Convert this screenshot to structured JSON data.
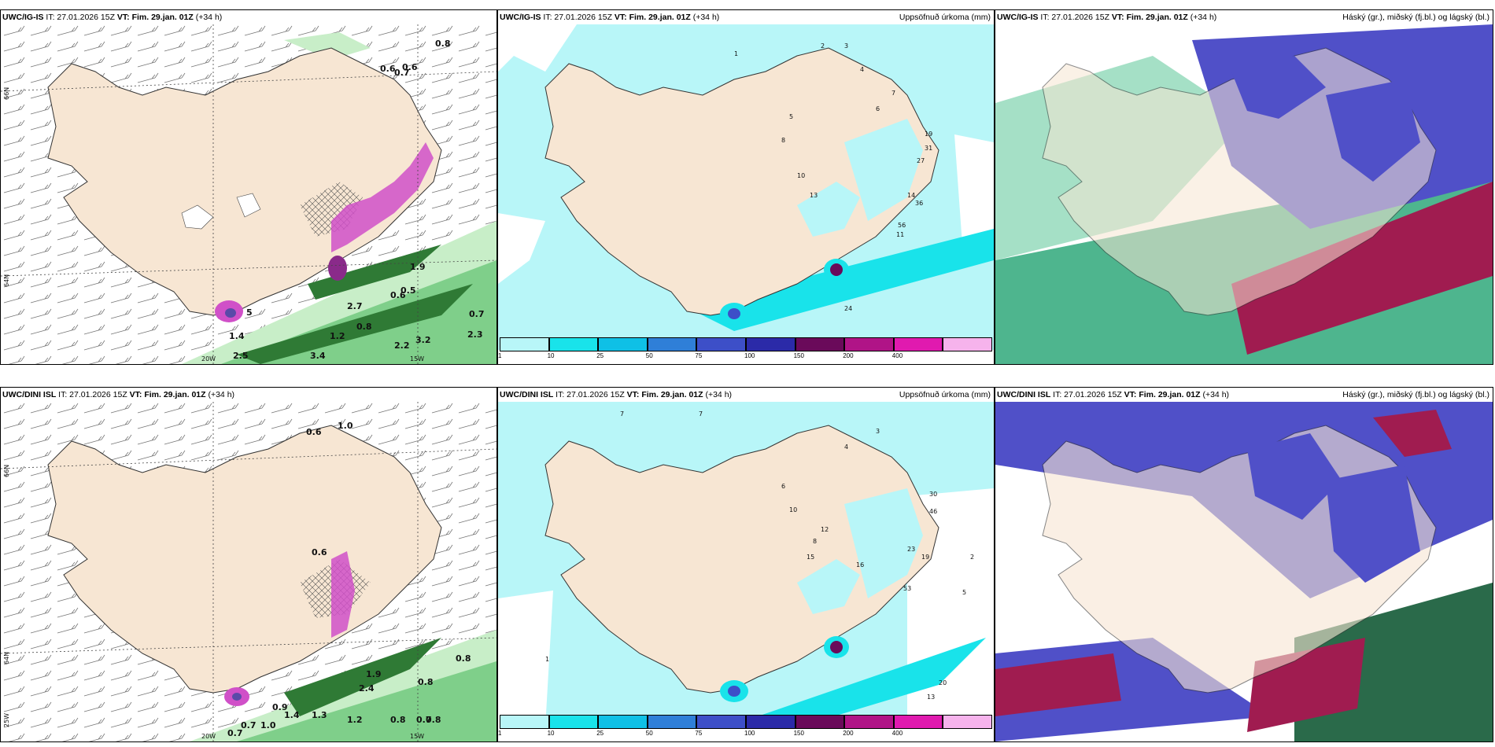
{
  "panels": [
    {
      "model": "UWC/IG-IS",
      "it": "IT: 27.01.2026 15Z",
      "vt_label": "VT:",
      "vt": "Fim. 29.jan. 01Z",
      "lead": "(+34 h)",
      "right": ""
    },
    {
      "model": "UWC/IG-IS",
      "it": "IT: 27.01.2026 15Z",
      "vt_label": "VT:",
      "vt": "Fim. 29.jan. 01Z",
      "lead": "(+34 h)",
      "right": "Uppsöfnuð úrkoma (mm)"
    },
    {
      "model": "UWC/IG-IS",
      "it": "IT: 27.01.2026 15Z",
      "vt_label": "VT:",
      "vt": "Fim. 29.jan. 01Z",
      "lead": "(+34 h)",
      "right": "Háský (gr.), miðský (fj.bl.) og lágský (bl.)"
    },
    {
      "model": "UWC/DINI ISL",
      "it": "IT: 27.01.2026 15Z",
      "vt_label": "VT:",
      "vt": "Fim. 29.jan. 01Z",
      "lead": "(+34 h)",
      "right": ""
    },
    {
      "model": "UWC/DINI ISL",
      "it": "IT: 27.01.2026 15Z",
      "vt_label": "VT:",
      "vt": "Fim. 29.jan. 01Z",
      "lead": "(+34 h)",
      "right": "Uppsöfnuð úrkoma (mm)"
    },
    {
      "model": "UWC/DINI ISL",
      "it": "IT: 27.01.2026 15Z",
      "vt_label": "VT:",
      "vt": "Fim. 29.jan. 01Z",
      "lead": "(+34 h)",
      "right": "Háský (gr.), miðský (fj.bl.) og lágský (bl.)"
    }
  ],
  "axis_labels": {
    "lat66": "66N",
    "lat64": "64N",
    "lon25": "25W",
    "lon20": "20W",
    "lon15": "15W"
  },
  "colorbar": {
    "ticks": [
      "1",
      "10",
      "25",
      "50",
      "75",
      "100",
      "150",
      "200",
      "400"
    ],
    "colors": [
      "#b8f6f8",
      "#19e3ea",
      "#0fc0e6",
      "#2f7fd8",
      "#3d4fc8",
      "#2b2aa8",
      "#6a0a5a",
      "#b01487",
      "#e01aaf",
      "#f6b3ec"
    ]
  },
  "colors": {
    "land": "#f7e6d3",
    "precip_light": "#b8f6f8",
    "green_light": "#c8eec8",
    "green_dark": "#2a6a2a",
    "magenta": "#d050c8",
    "cloud_high": "#5050c8",
    "cloud_mid": "#2fa87a",
    "cloud_low": "#a01c50"
  },
  "map_labels": {
    "p1": [
      "0.6",
      "0.6",
      "0.7",
      "0.8",
      "1.9",
      "0.6",
      "0.5",
      "2.7",
      "0.8",
      "0.7",
      "2.2",
      "3.2",
      "2.3",
      "2.5",
      "3.4",
      "1.2",
      "1.4",
      "5"
    ],
    "p2": [
      "1",
      "2",
      "3",
      "4",
      "5",
      "6",
      "7",
      "8",
      "10",
      "11",
      "13",
      "14",
      "19",
      "24",
      "27",
      "31",
      "36",
      "56"
    ],
    "p4": [
      "0.6",
      "1.0",
      "0.6",
      "1.9",
      "2.4",
      "0.8",
      "0.8",
      "0.9",
      "1.4",
      "1.3",
      "1.2",
      "0.8",
      "0.7",
      "0.7",
      "0.8",
      "0.7",
      "1.0"
    ],
    "p5": [
      "1",
      "2",
      "3",
      "4",
      "5",
      "6",
      "7",
      "8",
      "10",
      "12",
      "13",
      "15",
      "16",
      "19",
      "20",
      "23",
      "30",
      "46",
      "53",
      "7"
    ]
  }
}
